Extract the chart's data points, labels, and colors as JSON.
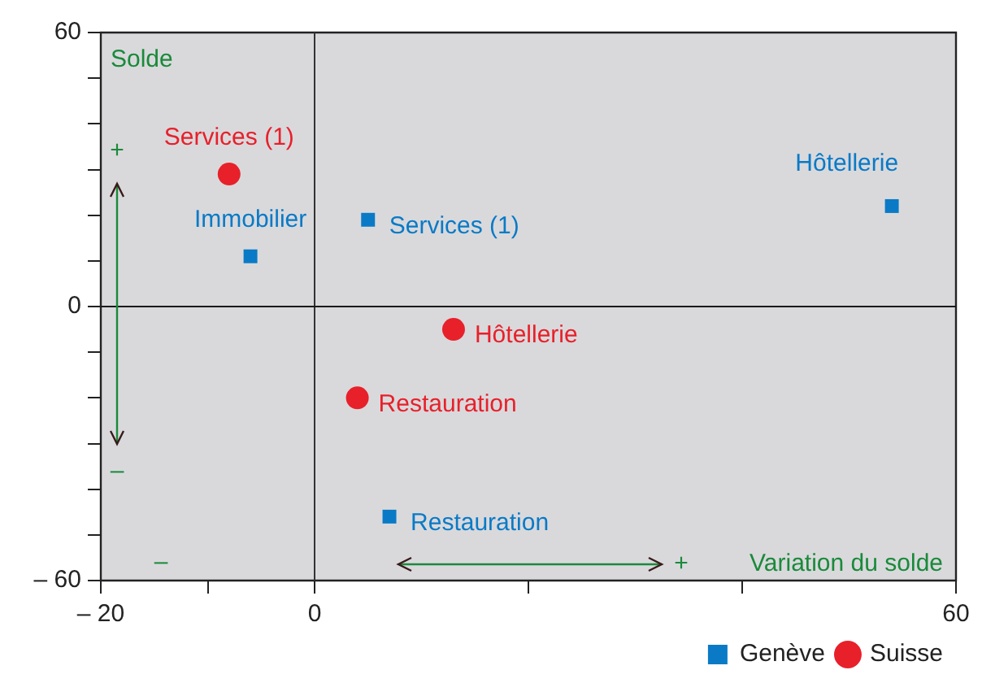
{
  "chart_data": {
    "type": "scatter",
    "xlabel": "Variation du solde",
    "ylabel": "Solde",
    "xlim": [
      -20,
      60
    ],
    "ylim": [
      -60,
      60
    ],
    "xticks": [
      {
        "value": -20,
        "label": "– 20"
      },
      {
        "value": -10,
        "label": null
      },
      0,
      {
        "value": 20,
        "label": null
      },
      {
        "value": 40,
        "label": null
      },
      60
    ],
    "yticks": [
      {
        "value": -60,
        "label": "– 60"
      },
      {
        "value": -50,
        "label": null
      },
      {
        "value": -40,
        "label": null
      },
      {
        "value": -30,
        "label": null
      },
      {
        "value": -20,
        "label": null
      },
      {
        "value": -10,
        "label": null
      },
      0,
      {
        "value": 10,
        "label": null
      },
      {
        "value": 20,
        "label": null
      },
      {
        "value": 30,
        "label": null
      },
      {
        "value": 40,
        "label": null
      },
      {
        "value": 50,
        "label": null
      },
      60
    ],
    "grid": false,
    "legend": "bottom right",
    "series": [
      {
        "name": "Genève",
        "color": "#0a7ac6",
        "marker": "square",
        "x": [
          -6,
          5,
          54,
          7
        ],
        "values": [
          11,
          19,
          22,
          -46
        ]
      },
      {
        "name": "Suisse",
        "color": "#e8202a",
        "marker": "circle",
        "x": [
          -8,
          13,
          4
        ],
        "values": [
          29,
          -5,
          -20
        ]
      }
    ],
    "ref_lines": [
      {
        "axis": "x",
        "value": 0,
        "color": "#333333"
      },
      {
        "axis": "y",
        "value": 0,
        "color": "#1a1a1a"
      }
    ],
    "annotations": [
      {
        "text": "Immobilier",
        "x": -6,
        "y": 11
      },
      {
        "text": "Services (1)",
        "x": 5,
        "y": 19
      },
      {
        "text": "Hôtellerie",
        "x": 54,
        "y": 22
      },
      {
        "text": "Restauration",
        "x": 7,
        "y": -46
      },
      {
        "text": "Services (1)",
        "x": -8,
        "y": 29
      },
      {
        "text": "Hôtellerie",
        "x": 13,
        "y": -5
      },
      {
        "text": "Restauration",
        "x": 4,
        "y": -20
      },
      "+",
      "–",
      "–",
      "+"
    ]
  }
}
